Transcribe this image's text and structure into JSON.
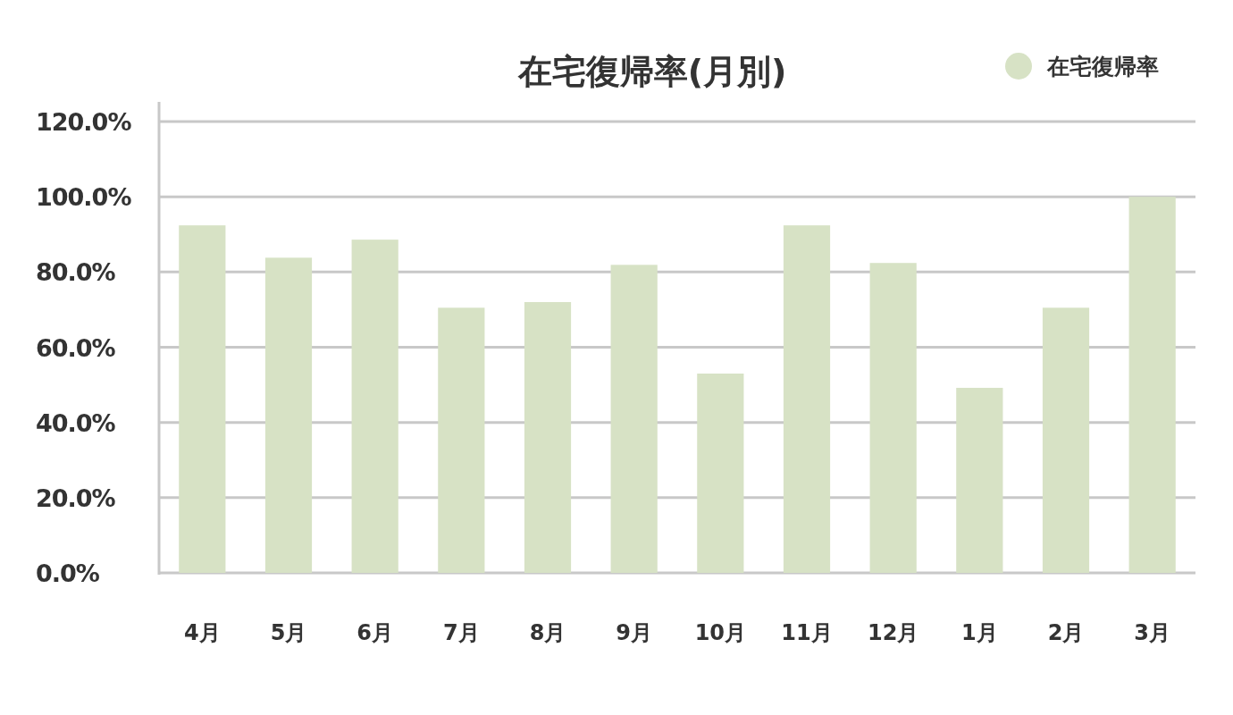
{
  "chart_data": {
    "type": "bar",
    "title": "在宅復帰率(月別)",
    "categories": [
      "4月",
      "5月",
      "6月",
      "7月",
      "8月",
      "9月",
      "10月",
      "11月",
      "12月",
      "1月",
      "2月",
      "3月"
    ],
    "series": [
      {
        "name": "在宅復帰率",
        "color": "#d7e2c5",
        "values": [
          92.4,
          83.8,
          88.6,
          70.5,
          72.0,
          81.9,
          53.0,
          92.4,
          82.4,
          49.2,
          70.5,
          100.0
        ]
      }
    ],
    "ylim": [
      0,
      120
    ],
    "yticks": [
      {
        "value": 0,
        "label": "0.0%"
      },
      {
        "value": 20,
        "label": "20.0%"
      },
      {
        "value": 40,
        "label": "40.0%"
      },
      {
        "value": 60,
        "label": "60.0%"
      },
      {
        "value": 80,
        "label": "80.0%"
      },
      {
        "value": 100,
        "label": "100.0%"
      },
      {
        "value": 120,
        "label": "120.0%"
      }
    ],
    "grid": "y",
    "legend": "top right",
    "marker": "circle"
  }
}
